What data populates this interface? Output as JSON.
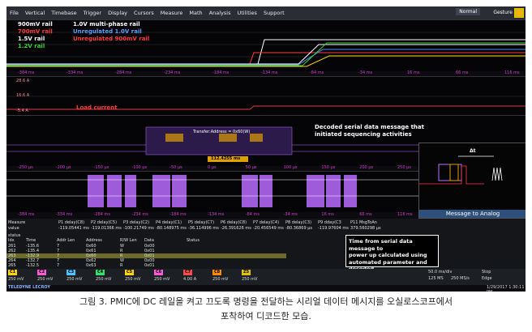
{
  "menu": [
    "File",
    "Vertical",
    "Timebase",
    "Trigger",
    "Display",
    "Cursors",
    "Measure",
    "Math",
    "Analysis",
    "Utilities",
    "Support"
  ],
  "status_normal": "Normal",
  "status_gesture": "Gesture",
  "rails": [
    {
      "label": "900mV rail",
      "color": "#ffffff"
    },
    {
      "label": "700mV rail",
      "color": "#ff3b3b"
    },
    {
      "label": "1.5V rail",
      "color": "#ffffff"
    },
    {
      "label": "1.2V rail",
      "color": "#2fd82f"
    }
  ],
  "callouts": {
    "multiphase": "1.0V multi-phase rail",
    "unreg_1v": "Unregulated 1.0V rail",
    "unreg_900": "Unregulated 900mV rail",
    "load_current": "Load current",
    "decoded_1": "Decoded serial data message that",
    "decoded_2": "initiated sequencing activities",
    "transfer": "Transfer:Address = 0x60(W)",
    "delta": "112.4255 ms"
  },
  "axis_top": [
    "-384 ms",
    "-334 ms",
    "-284 ms",
    "-234 ms",
    "-184 ms",
    "-134 ms",
    "-84 ms",
    "-34 ms",
    "16 ms",
    "66 ms",
    "116 ms"
  ],
  "axis_serial": [
    "-250 µs",
    "-200 µs",
    "-150 µs",
    "-100 µs",
    "-50 µs",
    "0 µs",
    "50 µs",
    "100 µs",
    "150 µs",
    "200 µs",
    "250 µs"
  ],
  "current_scale": [
    "28.6 A",
    "16.6 A",
    "-5.4 A"
  ],
  "measure": {
    "header": "Measure",
    "value_label": "value",
    "status_label": "status",
    "params": [
      {
        "name": "P1 delay(C8)",
        "value": "-119.05441 ms"
      },
      {
        "name": "P2 delay(C5)",
        "value": "-119.01366 ms"
      },
      {
        "name": "P3 delay(C2)",
        "value": "-100.21749 ms"
      },
      {
        "name": "P4 delay(C1)",
        "value": "-80.148975 ms"
      },
      {
        "name": "P5 delay(C7)",
        "value": "-36.114996 ms"
      },
      {
        "name": "P6 delay(C8)",
        "value": "-26.391626 ms"
      },
      {
        "name": "P7 delay(C4)",
        "value": "-20.456549 ms"
      },
      {
        "name": "P8 delay(C3)",
        "value": "-80.36869 µs"
      },
      {
        "name": "P9 dday(C3",
        "value": "-119.97604 ms"
      },
      {
        "name": "P11 MsgToAn",
        "value": "379.560298 µs"
      }
    ]
  },
  "table_headers": [
    "Idx",
    "Time",
    "Addr Len",
    "Address",
    "R/W Len",
    "Data",
    "Status"
  ],
  "table_rows": [
    {
      "idx": "261",
      "time": "-135.6",
      "addr": "7",
      "address": "0x60",
      "rw": "W",
      "data": "0x00"
    },
    {
      "idx": "262",
      "time": "-135.4",
      "addr": "7",
      "address": "0x61",
      "rw": "R",
      "data": "0x01"
    },
    {
      "idx": "263",
      "time": "-132.9",
      "addr": "7",
      "address": "0x60",
      "rw": "R",
      "data": "0x01"
    },
    {
      "idx": "264",
      "time": "-132.7",
      "addr": "7",
      "address": "0x62",
      "rw": "W",
      "data": "0x00"
    },
    {
      "idx": "265",
      "time": "-132.5",
      "addr": "7",
      "address": "0x63",
      "rw": "R",
      "data": "0x01"
    }
  ],
  "channels": [
    {
      "label": "C1",
      "color": "#ffd400",
      "value": "250 mV"
    },
    {
      "label": "C2",
      "color": "#ff5bd6",
      "value": "250 mV"
    },
    {
      "label": "C3",
      "color": "#4fc3ff",
      "value": "250 mV"
    },
    {
      "label": "C4",
      "color": "#35e06f",
      "value": "250 mV"
    },
    {
      "label": "C5",
      "color": "#ffd400",
      "value": "250 mV"
    },
    {
      "label": "C6",
      "color": "#ff5bd6",
      "value": "250 mV"
    },
    {
      "label": "C7",
      "color": "#ff4b4b",
      "value": "4.00 A"
    },
    {
      "label": "C8",
      "color": "#ff8a00",
      "value": "250 mV"
    },
    {
      "label": "Z5",
      "color": "#e6c200",
      "value": "250 mV"
    }
  ],
  "timebase": {
    "value": "50.0 ms/div",
    "sample": "125 MS",
    "rate": "250 MS/s",
    "trigger": "Stop",
    "edge": "Edge"
  },
  "brand": "TELEDYNE LECROY",
  "datetime": "1/29/2017 1:30:11 PM",
  "inset": {
    "caption": "Message to Analog",
    "delta": "Δt"
  },
  "calc_box": [
    "Time from serial data message to",
    "power up calculated using",
    "automated parameter and decoded",
    "serial data."
  ],
  "caption": [
    "그림 3. PMIC에 DC 레일을 켜고 끄도록 명령을 전달하는 시리얼 데이터 메시지를 오실로스코프에서",
    "포착하여 디코드한 모습."
  ],
  "colors": {
    "rail_white": "#ffffff",
    "rail_red": "#ff3b3b",
    "rail_green": "#2fd82f",
    "rail_yellow": "#ffd400",
    "serial": "#b96bff",
    "current": "#e23b3b"
  }
}
